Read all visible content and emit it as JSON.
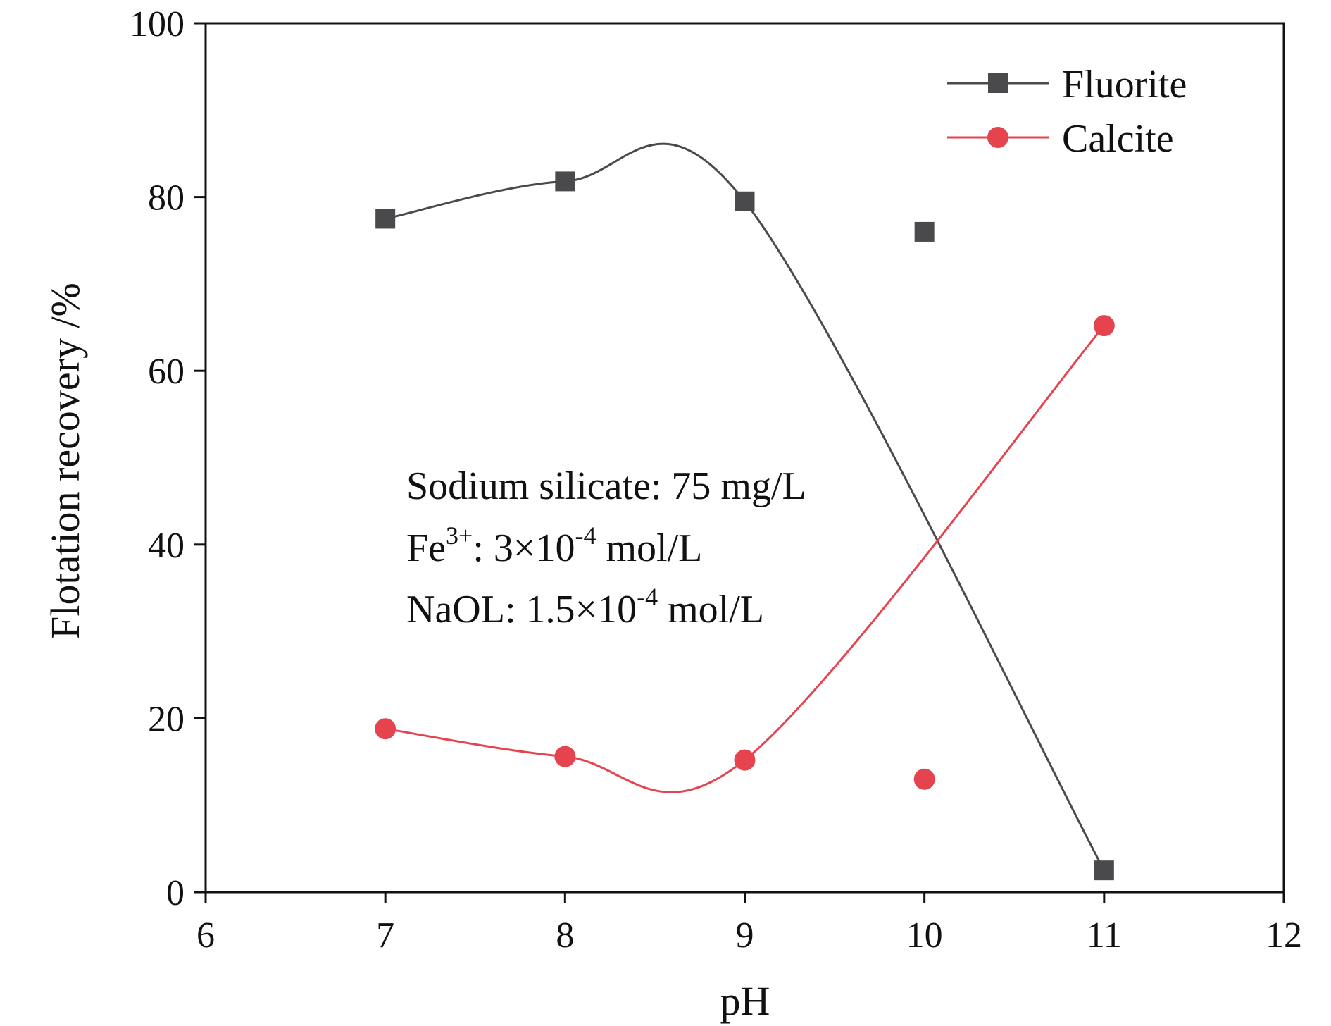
{
  "chart_data": {
    "type": "line",
    "xlabel": "pH",
    "ylabel": "Flotation recovery /%",
    "xlim": [
      6,
      12
    ],
    "ylim": [
      0,
      100
    ],
    "xticks": [
      "6",
      "7",
      "8",
      "9",
      "10",
      "11",
      "12"
    ],
    "yticks": [
      "0",
      "20",
      "40",
      "60",
      "80",
      "100"
    ],
    "grid": false,
    "legend_position": "top-right",
    "series": [
      {
        "name": "Fluorite",
        "marker": "square",
        "color": "#4a4a4c",
        "x": [
          7,
          8,
          9,
          10,
          11
        ],
        "values": [
          77.5,
          81.8,
          79.5,
          76.0,
          2.5
        ]
      },
      {
        "name": "Calcite",
        "marker": "circle",
        "color": "#e5444f",
        "x": [
          7,
          8,
          9,
          10,
          11
        ],
        "values": [
          18.8,
          15.6,
          15.2,
          13.0,
          65.2
        ]
      }
    ],
    "annotations": {
      "line1": "Sodium silicate: 75 mg/L",
      "line2_prefix": "Fe",
      "line2_sup": "3+",
      "line2_mid": ": 3×10",
      "line2_exp": "-4",
      "line2_suffix": " mol/L",
      "line3_prefix": "NaOL: 1.5×10",
      "line3_exp": "-4",
      "line3_suffix": " mol/L"
    }
  }
}
